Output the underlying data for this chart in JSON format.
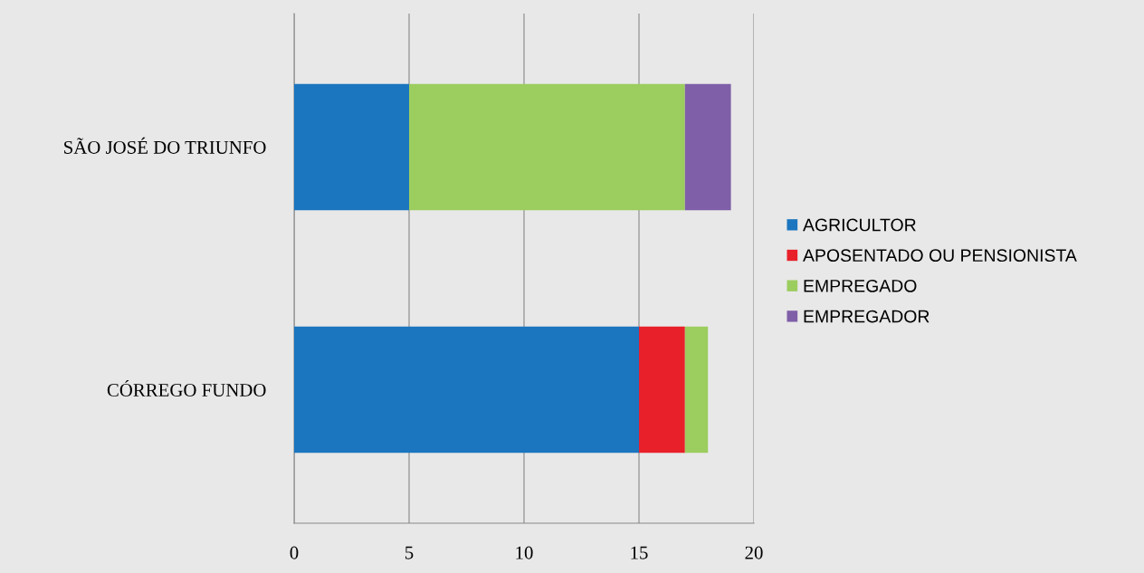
{
  "chart_data": {
    "type": "bar",
    "orientation": "horizontal",
    "stacked": true,
    "categories": [
      "SÃO JOSÉ DO TRIUNFO",
      "CÓRREGO FUNDO"
    ],
    "series": [
      {
        "name": "AGRICULTOR",
        "color": "#1b75bf",
        "values": [
          5,
          15
        ]
      },
      {
        "name": "APOSENTADO OU PENSIONISTA",
        "color": "#e8202a",
        "values": [
          0,
          2
        ]
      },
      {
        "name": "EMPREGADO",
        "color": "#9ccd5f",
        "values": [
          12,
          1
        ]
      },
      {
        "name": "EMPREGADOR",
        "color": "#7f5fa8",
        "values": [
          2,
          0
        ]
      }
    ],
    "xlim": [
      0,
      20
    ],
    "xticks": [
      0,
      5,
      10,
      15,
      20
    ],
    "grid": "x",
    "legend": "right"
  }
}
